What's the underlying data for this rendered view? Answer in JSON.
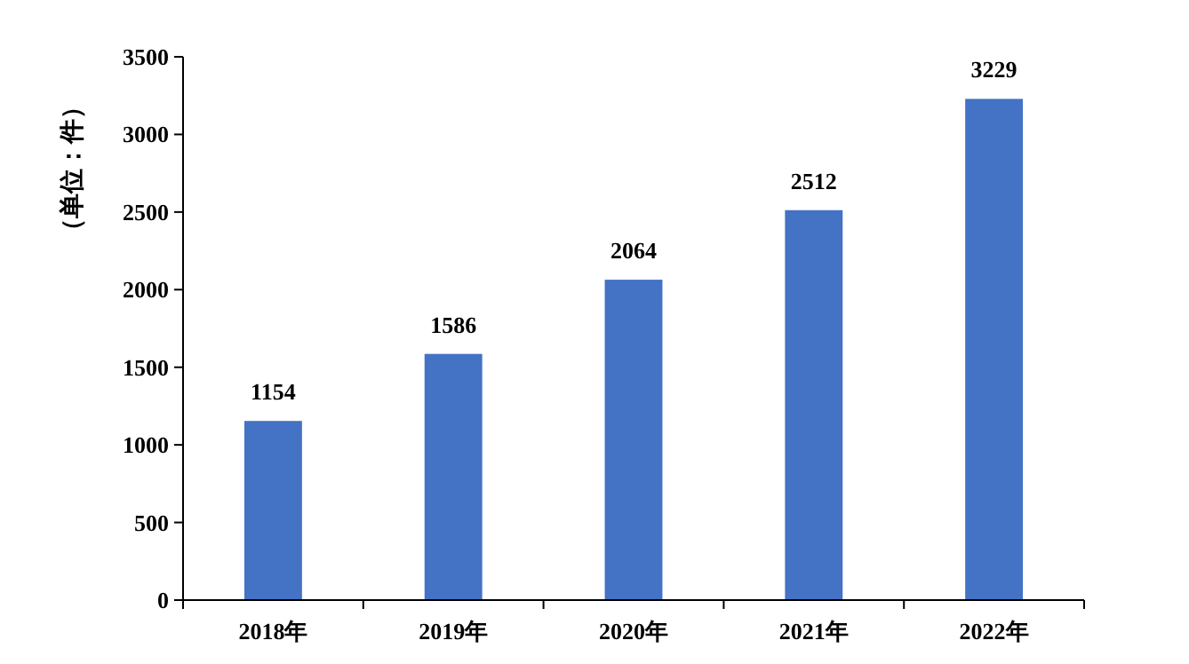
{
  "chart_data": {
    "type": "bar",
    "ylabel": "（单位：件）",
    "categories": [
      "2018年",
      "2019年",
      "2020年",
      "2021年",
      "2022年"
    ],
    "values": [
      1154,
      1586,
      2064,
      2512,
      3229
    ],
    "color": "#4472c4",
    "ylim": [
      0,
      3500
    ],
    "yticks": [
      0,
      500,
      1000,
      1500,
      2000,
      2500,
      3000,
      3500
    ],
    "data_labels": true
  }
}
